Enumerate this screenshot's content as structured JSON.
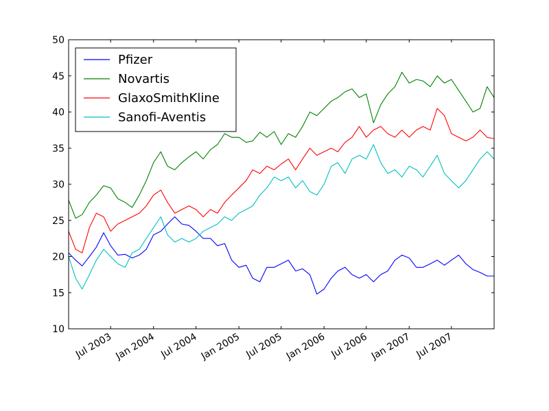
{
  "chart_data": {
    "type": "line",
    "title": "",
    "xlabel": "",
    "ylabel": "",
    "xlim": [
      "2003-01-02",
      "2007-12-31"
    ],
    "ylim": [
      10,
      50
    ],
    "y_ticks": [
      10,
      15,
      20,
      25,
      30,
      35,
      40,
      45,
      50
    ],
    "x_ticks": [
      {
        "date": "2003-07-01",
        "label": "Jul 2003"
      },
      {
        "date": "2004-01-01",
        "label": "Jan 2004"
      },
      {
        "date": "2004-07-01",
        "label": "Jul 2004"
      },
      {
        "date": "2005-01-01",
        "label": "Jan 2005"
      },
      {
        "date": "2005-07-01",
        "label": "Jul 2005"
      },
      {
        "date": "2006-01-01",
        "label": "Jan 2006"
      },
      {
        "date": "2006-07-01",
        "label": "Jul 2006"
      },
      {
        "date": "2007-01-01",
        "label": "Jan 2007"
      },
      {
        "date": "2007-07-01",
        "label": "Jul 2007"
      }
    ],
    "grid": false,
    "legend_position": "top-left",
    "series": [
      {
        "name": "Pfizer",
        "color": "#0000ff",
        "points": [
          [
            "2003-01-02",
            20.5
          ],
          [
            "2003-02-01",
            19.5
          ],
          [
            "2003-03-01",
            18.7
          ],
          [
            "2003-04-01",
            20.0
          ],
          [
            "2003-05-01",
            21.3
          ],
          [
            "2003-06-01",
            23.3
          ],
          [
            "2003-07-01",
            21.5
          ],
          [
            "2003-08-01",
            20.2
          ],
          [
            "2003-09-01",
            20.3
          ],
          [
            "2003-10-01",
            19.8
          ],
          [
            "2003-11-01",
            20.2
          ],
          [
            "2003-12-01",
            21.0
          ],
          [
            "2004-01-01",
            23.0
          ],
          [
            "2004-02-01",
            23.5
          ],
          [
            "2004-03-01",
            24.5
          ],
          [
            "2004-04-01",
            25.5
          ],
          [
            "2004-05-01",
            24.5
          ],
          [
            "2004-06-01",
            24.3
          ],
          [
            "2004-07-01",
            23.5
          ],
          [
            "2004-08-01",
            22.5
          ],
          [
            "2004-09-01",
            22.5
          ],
          [
            "2004-10-01",
            21.5
          ],
          [
            "2004-11-01",
            21.8
          ],
          [
            "2004-12-01",
            19.5
          ],
          [
            "2005-01-01",
            18.5
          ],
          [
            "2005-02-01",
            18.8
          ],
          [
            "2005-03-01",
            17.0
          ],
          [
            "2005-04-01",
            16.5
          ],
          [
            "2005-05-01",
            18.5
          ],
          [
            "2005-06-01",
            18.5
          ],
          [
            "2005-07-01",
            19.0
          ],
          [
            "2005-08-01",
            19.5
          ],
          [
            "2005-09-01",
            18.0
          ],
          [
            "2005-10-01",
            18.3
          ],
          [
            "2005-11-01",
            17.5
          ],
          [
            "2005-12-01",
            14.8
          ],
          [
            "2006-01-01",
            15.5
          ],
          [
            "2006-02-01",
            17.0
          ],
          [
            "2006-03-01",
            18.0
          ],
          [
            "2006-04-01",
            18.5
          ],
          [
            "2006-05-01",
            17.5
          ],
          [
            "2006-06-01",
            17.0
          ],
          [
            "2006-07-01",
            17.5
          ],
          [
            "2006-08-01",
            16.5
          ],
          [
            "2006-09-01",
            17.5
          ],
          [
            "2006-10-01",
            18.0
          ],
          [
            "2006-11-01",
            19.5
          ],
          [
            "2006-12-01",
            20.2
          ],
          [
            "2007-01-01",
            19.8
          ],
          [
            "2007-02-01",
            18.5
          ],
          [
            "2007-03-01",
            18.5
          ],
          [
            "2007-04-01",
            19.0
          ],
          [
            "2007-05-01",
            19.5
          ],
          [
            "2007-06-01",
            18.8
          ],
          [
            "2007-07-01",
            19.5
          ],
          [
            "2007-08-01",
            20.2
          ],
          [
            "2007-09-01",
            19.0
          ],
          [
            "2007-10-01",
            18.2
          ],
          [
            "2007-11-01",
            17.8
          ],
          [
            "2007-12-01",
            17.3
          ],
          [
            "2007-12-31",
            17.3
          ]
        ]
      },
      {
        "name": "Novartis",
        "color": "#008000",
        "points": [
          [
            "2003-01-02",
            27.8
          ],
          [
            "2003-02-01",
            25.3
          ],
          [
            "2003-03-01",
            25.8
          ],
          [
            "2003-04-01",
            27.5
          ],
          [
            "2003-05-01",
            28.5
          ],
          [
            "2003-06-01",
            29.8
          ],
          [
            "2003-07-01",
            29.5
          ],
          [
            "2003-08-01",
            28.0
          ],
          [
            "2003-09-01",
            27.5
          ],
          [
            "2003-10-01",
            26.8
          ],
          [
            "2003-11-01",
            28.5
          ],
          [
            "2003-12-01",
            30.5
          ],
          [
            "2004-01-01",
            33.0
          ],
          [
            "2004-02-01",
            34.5
          ],
          [
            "2004-03-01",
            32.5
          ],
          [
            "2004-04-01",
            32.0
          ],
          [
            "2004-05-01",
            33.0
          ],
          [
            "2004-06-01",
            33.8
          ],
          [
            "2004-07-01",
            34.5
          ],
          [
            "2004-08-01",
            33.5
          ],
          [
            "2004-09-01",
            34.8
          ],
          [
            "2004-10-01",
            35.5
          ],
          [
            "2004-11-01",
            37.0
          ],
          [
            "2004-12-01",
            36.5
          ],
          [
            "2005-01-01",
            36.5
          ],
          [
            "2005-02-01",
            35.8
          ],
          [
            "2005-03-01",
            36.0
          ],
          [
            "2005-04-01",
            37.2
          ],
          [
            "2005-05-01",
            36.5
          ],
          [
            "2005-06-01",
            37.3
          ],
          [
            "2005-07-01",
            35.5
          ],
          [
            "2005-08-01",
            37.0
          ],
          [
            "2005-09-01",
            36.5
          ],
          [
            "2005-10-01",
            38.0
          ],
          [
            "2005-11-01",
            40.0
          ],
          [
            "2005-12-01",
            39.5
          ],
          [
            "2006-01-01",
            40.5
          ],
          [
            "2006-02-01",
            41.5
          ],
          [
            "2006-03-01",
            42.0
          ],
          [
            "2006-04-01",
            42.8
          ],
          [
            "2006-05-01",
            43.2
          ],
          [
            "2006-06-01",
            42.0
          ],
          [
            "2006-07-01",
            42.5
          ],
          [
            "2006-08-01",
            38.5
          ],
          [
            "2006-09-01",
            41.0
          ],
          [
            "2006-10-01",
            42.5
          ],
          [
            "2006-11-01",
            43.5
          ],
          [
            "2006-12-01",
            45.5
          ],
          [
            "2007-01-01",
            44.0
          ],
          [
            "2007-02-01",
            44.5
          ],
          [
            "2007-03-01",
            44.3
          ],
          [
            "2007-04-01",
            43.5
          ],
          [
            "2007-05-01",
            45.0
          ],
          [
            "2007-06-01",
            44.0
          ],
          [
            "2007-07-01",
            44.5
          ],
          [
            "2007-08-01",
            43.0
          ],
          [
            "2007-09-01",
            41.5
          ],
          [
            "2007-10-01",
            40.0
          ],
          [
            "2007-11-01",
            40.5
          ],
          [
            "2007-12-01",
            43.5
          ],
          [
            "2007-12-31",
            42.0
          ]
        ]
      },
      {
        "name": "GlaxoSmithKline",
        "color": "#ff0000",
        "points": [
          [
            "2003-01-02",
            23.5
          ],
          [
            "2003-02-01",
            21.0
          ],
          [
            "2003-03-01",
            20.5
          ],
          [
            "2003-04-01",
            24.0
          ],
          [
            "2003-05-01",
            26.0
          ],
          [
            "2003-06-01",
            25.5
          ],
          [
            "2003-07-01",
            23.5
          ],
          [
            "2003-08-01",
            24.5
          ],
          [
            "2003-09-01",
            25.0
          ],
          [
            "2003-10-01",
            25.5
          ],
          [
            "2003-11-01",
            26.0
          ],
          [
            "2003-12-01",
            27.0
          ],
          [
            "2004-01-01",
            28.5
          ],
          [
            "2004-02-01",
            29.2
          ],
          [
            "2004-03-01",
            27.5
          ],
          [
            "2004-04-01",
            26.0
          ],
          [
            "2004-05-01",
            26.5
          ],
          [
            "2004-06-01",
            27.0
          ],
          [
            "2004-07-01",
            26.5
          ],
          [
            "2004-08-01",
            25.5
          ],
          [
            "2004-09-01",
            26.5
          ],
          [
            "2004-10-01",
            26.0
          ],
          [
            "2004-11-01",
            27.5
          ],
          [
            "2004-12-01",
            28.5
          ],
          [
            "2005-01-01",
            29.5
          ],
          [
            "2005-02-01",
            30.5
          ],
          [
            "2005-03-01",
            32.0
          ],
          [
            "2005-04-01",
            31.5
          ],
          [
            "2005-05-01",
            32.5
          ],
          [
            "2005-06-01",
            32.0
          ],
          [
            "2005-07-01",
            32.8
          ],
          [
            "2005-08-01",
            33.5
          ],
          [
            "2005-09-01",
            32.0
          ],
          [
            "2005-10-01",
            33.5
          ],
          [
            "2005-11-01",
            35.0
          ],
          [
            "2005-12-01",
            34.0
          ],
          [
            "2006-01-01",
            34.5
          ],
          [
            "2006-02-01",
            35.0
          ],
          [
            "2006-03-01",
            34.5
          ],
          [
            "2006-04-01",
            35.8
          ],
          [
            "2006-05-01",
            36.5
          ],
          [
            "2006-06-01",
            38.0
          ],
          [
            "2006-07-01",
            36.5
          ],
          [
            "2006-08-01",
            37.5
          ],
          [
            "2006-09-01",
            38.0
          ],
          [
            "2006-10-01",
            37.0
          ],
          [
            "2006-11-01",
            36.5
          ],
          [
            "2006-12-01",
            37.5
          ],
          [
            "2007-01-01",
            36.5
          ],
          [
            "2007-02-01",
            37.5
          ],
          [
            "2007-03-01",
            38.0
          ],
          [
            "2007-04-01",
            37.5
          ],
          [
            "2007-05-01",
            40.5
          ],
          [
            "2007-06-01",
            39.5
          ],
          [
            "2007-07-01",
            37.0
          ],
          [
            "2007-08-01",
            36.5
          ],
          [
            "2007-09-01",
            36.0
          ],
          [
            "2007-10-01",
            36.5
          ],
          [
            "2007-11-01",
            37.5
          ],
          [
            "2007-12-01",
            36.5
          ],
          [
            "2007-12-31",
            36.3
          ]
        ]
      },
      {
        "name": "Sanofi-Aventis",
        "color": "#00bfbf",
        "points": [
          [
            "2003-01-02",
            20.0
          ],
          [
            "2003-02-01",
            17.0
          ],
          [
            "2003-03-01",
            15.5
          ],
          [
            "2003-04-01",
            17.5
          ],
          [
            "2003-05-01",
            19.5
          ],
          [
            "2003-06-01",
            21.0
          ],
          [
            "2003-07-01",
            20.0
          ],
          [
            "2003-08-01",
            19.0
          ],
          [
            "2003-09-01",
            18.5
          ],
          [
            "2003-10-01",
            20.5
          ],
          [
            "2003-11-01",
            21.0
          ],
          [
            "2003-12-01",
            22.5
          ],
          [
            "2004-01-01",
            24.0
          ],
          [
            "2004-02-01",
            25.5
          ],
          [
            "2004-03-01",
            23.0
          ],
          [
            "2004-04-01",
            22.0
          ],
          [
            "2004-05-01",
            22.5
          ],
          [
            "2004-06-01",
            22.0
          ],
          [
            "2004-07-01",
            22.5
          ],
          [
            "2004-08-01",
            23.5
          ],
          [
            "2004-09-01",
            24.0
          ],
          [
            "2004-10-01",
            24.5
          ],
          [
            "2004-11-01",
            25.5
          ],
          [
            "2004-12-01",
            25.0
          ],
          [
            "2005-01-01",
            26.0
          ],
          [
            "2005-02-01",
            26.5
          ],
          [
            "2005-03-01",
            27.0
          ],
          [
            "2005-04-01",
            28.5
          ],
          [
            "2005-05-01",
            29.5
          ],
          [
            "2005-06-01",
            31.0
          ],
          [
            "2005-07-01",
            30.5
          ],
          [
            "2005-08-01",
            31.0
          ],
          [
            "2005-09-01",
            29.5
          ],
          [
            "2005-10-01",
            30.5
          ],
          [
            "2005-11-01",
            29.0
          ],
          [
            "2005-12-01",
            28.5
          ],
          [
            "2006-01-01",
            30.0
          ],
          [
            "2006-02-01",
            32.5
          ],
          [
            "2006-03-01",
            33.0
          ],
          [
            "2006-04-01",
            31.5
          ],
          [
            "2006-05-01",
            33.5
          ],
          [
            "2006-06-01",
            34.0
          ],
          [
            "2006-07-01",
            33.5
          ],
          [
            "2006-08-01",
            35.5
          ],
          [
            "2006-09-01",
            33.0
          ],
          [
            "2006-10-01",
            31.5
          ],
          [
            "2006-11-01",
            32.0
          ],
          [
            "2006-12-01",
            31.0
          ],
          [
            "2007-01-01",
            32.5
          ],
          [
            "2007-02-01",
            32.0
          ],
          [
            "2007-03-01",
            31.0
          ],
          [
            "2007-04-01",
            32.5
          ],
          [
            "2007-05-01",
            34.0
          ],
          [
            "2007-06-01",
            31.5
          ],
          [
            "2007-07-01",
            30.5
          ],
          [
            "2007-08-01",
            29.5
          ],
          [
            "2007-09-01",
            30.5
          ],
          [
            "2007-10-01",
            32.0
          ],
          [
            "2007-11-01",
            33.5
          ],
          [
            "2007-12-01",
            34.5
          ],
          [
            "2007-12-31",
            33.5
          ]
        ]
      }
    ]
  }
}
